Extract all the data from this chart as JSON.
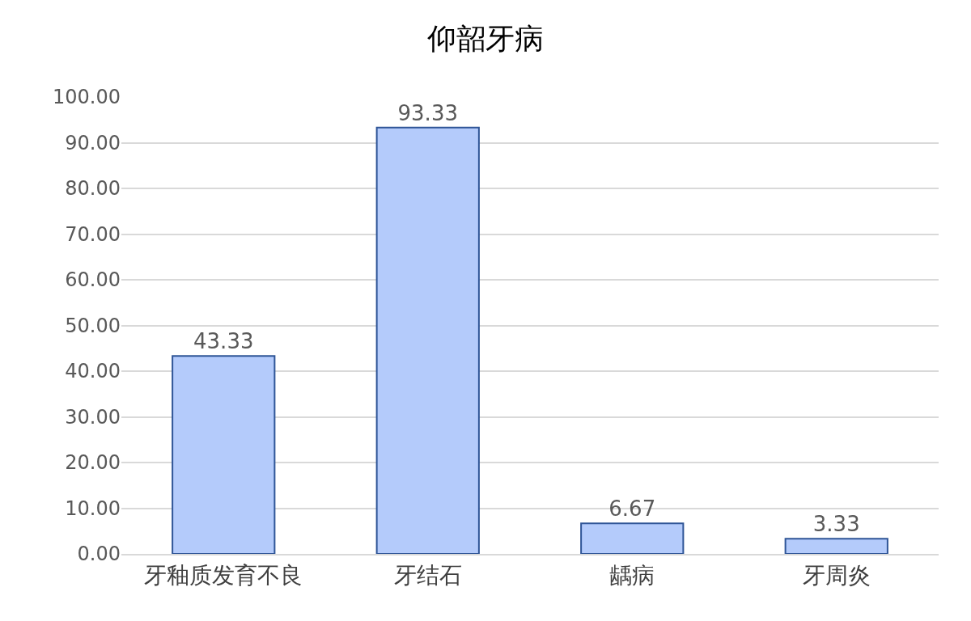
{
  "chart_data": {
    "type": "bar",
    "title": "仰韶牙病",
    "categories": [
      "牙釉质发育不良",
      "牙结石",
      "龋病",
      "牙周炎"
    ],
    "values": [
      43.33,
      93.33,
      6.67,
      3.33
    ],
    "color": "#b4cbfb",
    "data_labels": true,
    "ylim": [
      0,
      100
    ],
    "yticks": [
      {
        "value": 0,
        "label": "0.00"
      },
      {
        "value": 10,
        "label": "10.00"
      },
      {
        "value": 20,
        "label": "20.00"
      },
      {
        "value": 30,
        "label": "30.00"
      },
      {
        "value": 40,
        "label": "40.00"
      },
      {
        "value": 50,
        "label": "50.00"
      },
      {
        "value": 60,
        "label": "60.00"
      },
      {
        "value": 70,
        "label": "70.00"
      },
      {
        "value": 80,
        "label": "80.00"
      },
      {
        "value": 90,
        "label": "90.00"
      },
      {
        "value": 100,
        "label": "100.00"
      }
    ],
    "grid": "y"
  }
}
